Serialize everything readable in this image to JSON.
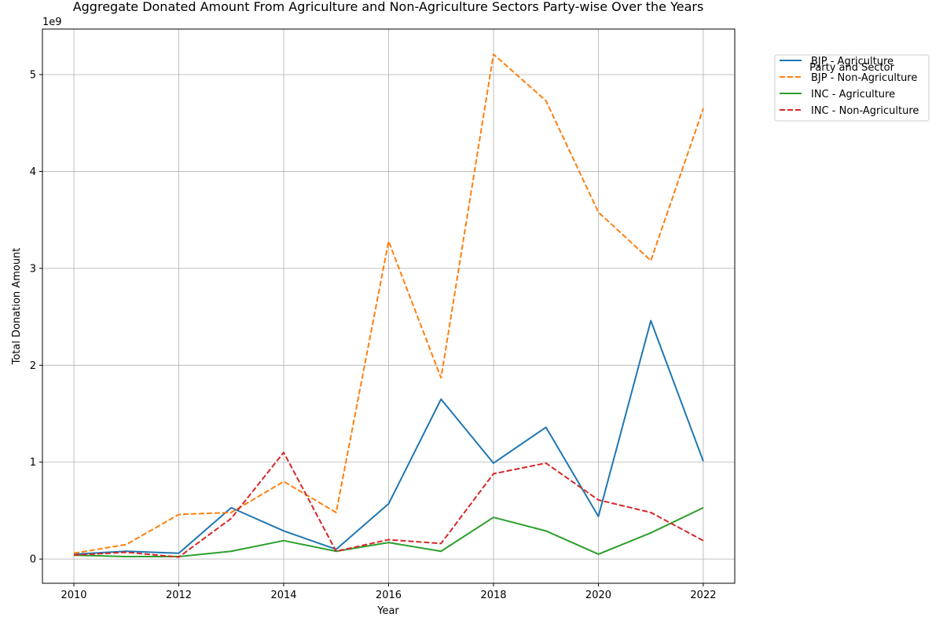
{
  "chart_data": {
    "type": "line",
    "title": "Aggregate Donated Amount From Agriculture and Non-Agriculture Sectors Party-wise Over the Years",
    "xlabel": "Year",
    "ylabel": "Total Donation Amount",
    "y_offset_label": "1e9",
    "xlim": [
      2009.4,
      2022.6
    ],
    "ylim": [
      -250000000,
      5470000000
    ],
    "x_ticks": [
      2010,
      2012,
      2014,
      2016,
      2018,
      2020,
      2022
    ],
    "y_ticks": [
      0,
      1000000000,
      2000000000,
      3000000000,
      4000000000,
      5000000000
    ],
    "y_tick_labels": [
      "0",
      "1",
      "2",
      "3",
      "4",
      "5"
    ],
    "grid": true,
    "legend_title": "Party and Sector",
    "legend_position": "outside-right-top",
    "x": [
      2010,
      2011,
      2012,
      2013,
      2014,
      2015,
      2016,
      2017,
      2018,
      2019,
      2020,
      2021,
      2022
    ],
    "series": [
      {
        "name": "BJP - Agriculture",
        "color": "#1f77b4",
        "dash": "solid",
        "values": [
          50000000,
          80000000,
          60000000,
          530000000,
          290000000,
          100000000,
          570000000,
          1650000000,
          990000000,
          1360000000,
          440000000,
          2460000000,
          1010000000
        ]
      },
      {
        "name": "BJP - Non-Agriculture",
        "color": "#ff7f0e",
        "dash": "dashed",
        "values": [
          60000000,
          150000000,
          460000000,
          480000000,
          800000000,
          480000000,
          3280000000,
          1870000000,
          5210000000,
          4730000000,
          3580000000,
          3080000000,
          4650000000
        ]
      },
      {
        "name": "INC - Agriculture",
        "color": "#2ca02c",
        "dash": "solid",
        "values": [
          40000000,
          25000000,
          25000000,
          80000000,
          190000000,
          80000000,
          170000000,
          80000000,
          430000000,
          290000000,
          50000000,
          270000000,
          530000000
        ]
      },
      {
        "name": "INC - Non-Agriculture",
        "color": "#d62728",
        "dash": "dashed",
        "values": [
          40000000,
          70000000,
          20000000,
          420000000,
          1100000000,
          80000000,
          200000000,
          160000000,
          880000000,
          990000000,
          610000000,
          480000000,
          190000000
        ]
      }
    ]
  }
}
